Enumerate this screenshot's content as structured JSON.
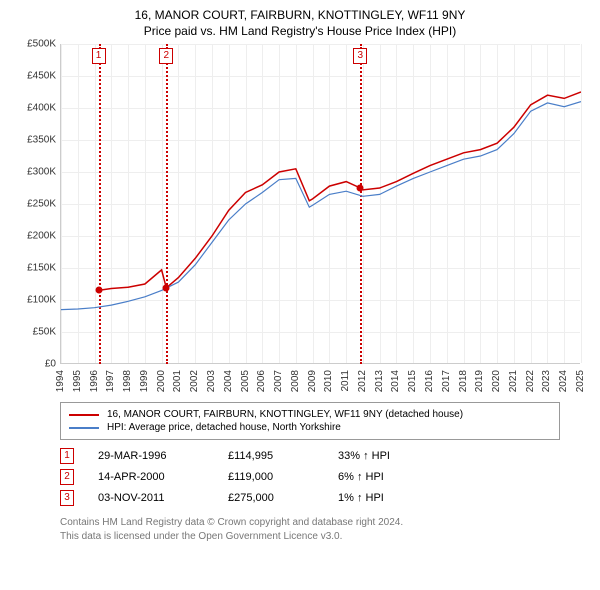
{
  "title": "16, MANOR COURT, FAIRBURN, KNOTTINGLEY, WF11 9NY",
  "subtitle": "Price paid vs. HM Land Registry's House Price Index (HPI)",
  "chart": {
    "type": "line",
    "ylim": [
      0,
      500000
    ],
    "ytick_step": 50000,
    "ylabels": [
      "£0",
      "£50K",
      "£100K",
      "£150K",
      "£200K",
      "£250K",
      "£300K",
      "£350K",
      "£400K",
      "£450K",
      "£500K"
    ],
    "xlim": [
      1994,
      2025
    ],
    "xticks": [
      1994,
      1995,
      1996,
      1997,
      1998,
      1999,
      2000,
      2001,
      2002,
      2003,
      2004,
      2005,
      2006,
      2007,
      2008,
      2009,
      2010,
      2011,
      2012,
      2013,
      2014,
      2015,
      2016,
      2017,
      2018,
      2019,
      2020,
      2021,
      2022,
      2023,
      2024,
      2025
    ],
    "background_color": "#ffffff",
    "grid_color": "#eeeeee",
    "series": [
      {
        "name": "16, MANOR COURT, FAIRBURN, KNOTTINGLEY, WF11 9NY (detached house)",
        "color": "#cc0000",
        "line_width": 1.5,
        "data": [
          [
            1996.24,
            114995
          ],
          [
            1997,
            118000
          ],
          [
            1998,
            120000
          ],
          [
            1999,
            125000
          ],
          [
            2000,
            147000
          ],
          [
            2000.28,
            119000
          ],
          [
            2001,
            135000
          ],
          [
            2002,
            165000
          ],
          [
            2003,
            200000
          ],
          [
            2004,
            240000
          ],
          [
            2005,
            268000
          ],
          [
            2006,
            280000
          ],
          [
            2007,
            300000
          ],
          [
            2008,
            305000
          ],
          [
            2008.8,
            255000
          ],
          [
            2009,
            258000
          ],
          [
            2010,
            278000
          ],
          [
            2011,
            285000
          ],
          [
            2011.84,
            275000
          ],
          [
            2012,
            272000
          ],
          [
            2013,
            275000
          ],
          [
            2014,
            285000
          ],
          [
            2015,
            298000
          ],
          [
            2016,
            310000
          ],
          [
            2017,
            320000
          ],
          [
            2018,
            330000
          ],
          [
            2019,
            335000
          ],
          [
            2020,
            345000
          ],
          [
            2021,
            370000
          ],
          [
            2022,
            405000
          ],
          [
            2023,
            420000
          ],
          [
            2024,
            415000
          ],
          [
            2025,
            425000
          ]
        ]
      },
      {
        "name": "HPI: Average price, detached house, North Yorkshire",
        "color": "#4a7ec8",
        "line_width": 1.2,
        "data": [
          [
            1994,
            85000
          ],
          [
            1995,
            86000
          ],
          [
            1996,
            88000
          ],
          [
            1997,
            92000
          ],
          [
            1998,
            98000
          ],
          [
            1999,
            105000
          ],
          [
            2000,
            115000
          ],
          [
            2001,
            128000
          ],
          [
            2002,
            155000
          ],
          [
            2003,
            190000
          ],
          [
            2004,
            225000
          ],
          [
            2005,
            250000
          ],
          [
            2006,
            268000
          ],
          [
            2007,
            288000
          ],
          [
            2008,
            290000
          ],
          [
            2008.8,
            245000
          ],
          [
            2009,
            248000
          ],
          [
            2010,
            265000
          ],
          [
            2011,
            270000
          ],
          [
            2012,
            262000
          ],
          [
            2013,
            265000
          ],
          [
            2014,
            278000
          ],
          [
            2015,
            290000
          ],
          [
            2016,
            300000
          ],
          [
            2017,
            310000
          ],
          [
            2018,
            320000
          ],
          [
            2019,
            325000
          ],
          [
            2020,
            335000
          ],
          [
            2021,
            360000
          ],
          [
            2022,
            395000
          ],
          [
            2023,
            408000
          ],
          [
            2024,
            402000
          ],
          [
            2025,
            410000
          ]
        ]
      }
    ],
    "markers": [
      {
        "num": "1",
        "x": 1996.24,
        "y": 114995
      },
      {
        "num": "2",
        "x": 2000.28,
        "y": 119000
      },
      {
        "num": "3",
        "x": 2011.84,
        "y": 275000
      }
    ]
  },
  "legend": {
    "items": [
      {
        "color": "#cc0000",
        "label": "16, MANOR COURT, FAIRBURN, KNOTTINGLEY, WF11 9NY (detached house)"
      },
      {
        "color": "#4a7ec8",
        "label": "HPI: Average price, detached house, North Yorkshire"
      }
    ]
  },
  "sales": [
    {
      "num": "1",
      "date": "29-MAR-1996",
      "price": "£114,995",
      "diff": "33% ↑ HPI"
    },
    {
      "num": "2",
      "date": "14-APR-2000",
      "price": "£119,000",
      "diff": "6% ↑ HPI"
    },
    {
      "num": "3",
      "date": "03-NOV-2011",
      "price": "£275,000",
      "diff": "1% ↑ HPI"
    }
  ],
  "footer": {
    "line1": "Contains HM Land Registry data © Crown copyright and database right 2024.",
    "line2": "This data is licensed under the Open Government Licence v3.0."
  }
}
